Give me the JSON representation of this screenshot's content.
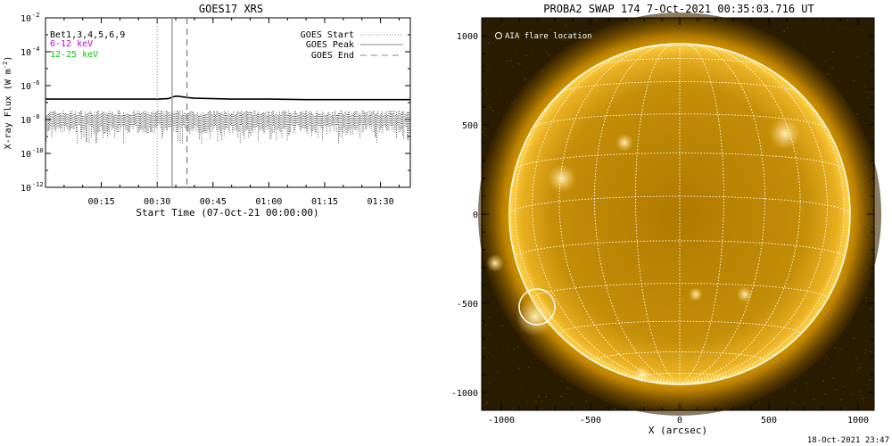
{
  "goes_panel": {
    "title": "GOES17 XRS",
    "ylabel": "X-ray Flux (W m",
    "ylabel_sup": "-2",
    "ylabel_close": ")",
    "xlabel": "Start Time (07-Oct-21 00:00:00)",
    "ytick_labels": [
      {
        "base": "10",
        "exp": "-2"
      },
      {
        "base": "10",
        "exp": "-4"
      },
      {
        "base": "10",
        "exp": "-6"
      },
      {
        "base": "10",
        "exp": "-8"
      },
      {
        "base": "10",
        "exp": "-10"
      },
      {
        "base": "10",
        "exp": "-12"
      }
    ],
    "xtick_labels": [
      "00:15",
      "00:30",
      "00:45",
      "01:00",
      "01:15",
      "01:30"
    ],
    "channel_labels": [
      {
        "text": "Bet1,3,4,5,6,9",
        "color": "#000000"
      },
      {
        "text": "6-12 keV",
        "color": "#cc00cc"
      },
      {
        "text": "12-25 keV",
        "color": "#00cc00"
      }
    ],
    "legend": [
      {
        "label": "GOES Start",
        "style": "dotted"
      },
      {
        "label": "GOES Peak",
        "style": "solid"
      },
      {
        "label": "GOES End",
        "style": "dashed"
      }
    ]
  },
  "swap_panel": {
    "title": "PROBA2 SWAP 174  7-Oct-2021 00:35:03.716 UT",
    "xlabel": "X (arcsec)",
    "xtick_labels": [
      "-1000",
      "-500",
      "0",
      "500",
      "1000"
    ],
    "ytick_labels": [
      "1000",
      "500",
      "0",
      "-500",
      "-1000"
    ],
    "flare_legend": "AIA flare location",
    "timestamp": "18-Oct-2021 23:47"
  },
  "chart_data": [
    {
      "type": "line",
      "title": "GOES17 XRS",
      "xlabel": "Start Time (07-Oct-21 00:00:00)",
      "ylabel": "X-ray Flux (W m^-2)",
      "yscale": "log",
      "ylim": [
        1e-12,
        0.01
      ],
      "xlim_minutes": [
        0,
        98
      ],
      "series": [
        {
          "name": "Bet1,3,4,5,6,9",
          "x_minutes": [
            0,
            10,
            20,
            30,
            33,
            34,
            35,
            36,
            38,
            40,
            45,
            50,
            60,
            70,
            80,
            90,
            98
          ],
          "values": [
            1.6e-07,
            1.6e-07,
            1.6e-07,
            1.6e-07,
            1.7e-07,
            2.1e-07,
            2.4e-07,
            2.3e-07,
            2e-07,
            1.8e-07,
            1.7e-07,
            1.6e-07,
            1.6e-07,
            1.5e-07,
            1.5e-07,
            1.5e-07,
            1.5e-07
          ]
        },
        {
          "name": "noise",
          "x_minutes": [
            0,
            98
          ],
          "values": [
            1e-08,
            1e-08
          ]
        }
      ],
      "markers_minutes": {
        "GOES Start": 30,
        "GOES Peak": 34,
        "GOES End": 38
      }
    },
    {
      "type": "scatter",
      "title": "PROBA2 SWAP 174  7-Oct-2021 00:35:03.716 UT",
      "xlabel": "X (arcsec)",
      "ylabel": "",
      "xlim": [
        -1100,
        1100
      ],
      "ylim": [
        -1100,
        1100
      ],
      "solar_radius_arcsec": 955,
      "grid_spacing_deg": 15,
      "series": [
        {
          "name": "AIA flare location",
          "x": [
            -800
          ],
          "y": [
            -520
          ]
        }
      ]
    }
  ]
}
